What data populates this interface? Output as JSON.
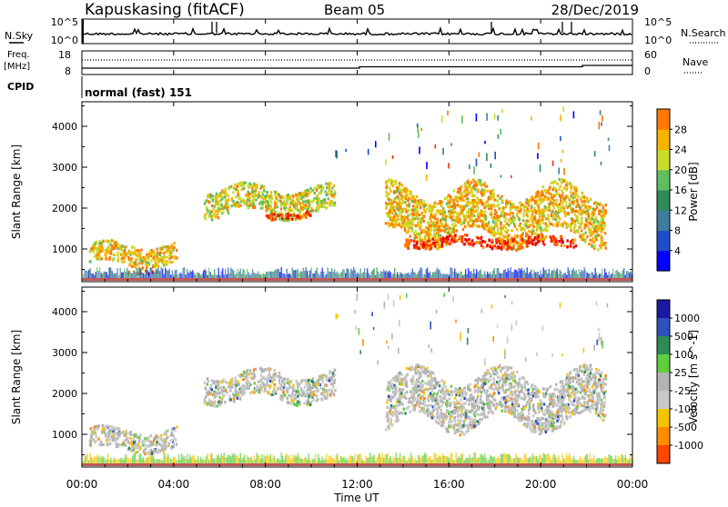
{
  "header": {
    "station": "Kapuskasing (fitACF)",
    "beam": "Beam 05",
    "date": "28/Dec/2019"
  },
  "top_panels": {
    "nsky_label": "N.Sky",
    "nsearch_label": "N.Search",
    "freq_label_1": "Freq.",
    "freq_label_2": "[MHz]",
    "nave_label": "Nave",
    "cpid_label": "CPID",
    "cpid_value": "normal (fast) 151",
    "noise_left_ticks": [
      "10^5",
      "10^0"
    ],
    "noise_right_ticks": [
      "10^5",
      "10^0"
    ],
    "freq_left_ticks": [
      "18",
      "8"
    ],
    "freq_right_ticks": [
      "60",
      "0"
    ]
  },
  "colors": {
    "power_scale": [
      "#0000ff",
      "#1e4fc8",
      "#3c7d9e",
      "#2e8b57",
      "#5fbf5f",
      "#c8dc28",
      "#f5b400",
      "#ff7800",
      "#ff2a00",
      "#e60000"
    ],
    "velocity_scale": [
      "#1a1aa0",
      "#2e4fbe",
      "#2e8b57",
      "#5fcf3f",
      "#b4b4b4",
      "#c8c8c8",
      "#f5c400",
      "#ff8c00",
      "#ff4500",
      "#e60000"
    ],
    "ground": "#808080"
  },
  "chart_data": [
    {
      "type": "heatmap",
      "panel": "power",
      "xlabel": "Time UT",
      "ylabel": "Slant Range [km]",
      "x_ticks": [
        "00:00",
        "04:00",
        "08:00",
        "12:00",
        "16:00",
        "20:00",
        "00:00"
      ],
      "y_ticks": [
        "1000",
        "2000",
        "3000",
        "4000"
      ],
      "ylim": [
        200,
        4600
      ],
      "x_range_hours": [
        0,
        24
      ],
      "colorbar": {
        "label": "Power [dB]",
        "tick_labels": [
          "4",
          "8",
          "12",
          "16",
          "20",
          "24",
          "28"
        ],
        "range": [
          0,
          30
        ]
      },
      "echo_regions": [
        {
          "t_start": 0.3,
          "t_end": 4.1,
          "r_low": 600,
          "r_high": 1200,
          "dominant_db": 20
        },
        {
          "t_start": 2.0,
          "t_end": 3.3,
          "r_low": 420,
          "r_high": 520,
          "dominant_db": 26
        },
        {
          "t_start": 5.3,
          "t_end": 11.0,
          "r_low": 1800,
          "r_high": 2600,
          "dominant_db": 18
        },
        {
          "t_start": 8.0,
          "t_end": 10.0,
          "r_low": 1750,
          "r_high": 1950,
          "dominant_db": 26
        },
        {
          "t_start": 13.2,
          "t_end": 22.8,
          "r_low": 1150,
          "r_high": 2600,
          "dominant_db": 20
        },
        {
          "t_start": 14.0,
          "t_end": 21.5,
          "r_low": 1050,
          "r_high": 1350,
          "dominant_db": 26
        }
      ]
    },
    {
      "type": "heatmap",
      "panel": "velocity",
      "xlabel": "Time UT",
      "ylabel": "Slant Range [km]",
      "x_ticks": [
        "00:00",
        "04:00",
        "08:00",
        "12:00",
        "16:00",
        "20:00",
        "00:00"
      ],
      "y_ticks": [
        "1000",
        "2000",
        "3000",
        "4000"
      ],
      "ylim": [
        200,
        4600
      ],
      "x_range_hours": [
        0,
        24
      ],
      "colorbar": {
        "label": "Velocity [m s^-1]",
        "tick_labels": [
          "1000",
          "500",
          "100",
          "25",
          "-25",
          "-100",
          "-500",
          "-1000"
        ],
        "range": [
          -1000,
          1000
        ]
      },
      "echo_regions": [
        {
          "t_start": 0.3,
          "t_end": 4.1,
          "r_low": 600,
          "r_high": 1200,
          "dominant_ms": 0
        },
        {
          "t_start": 5.3,
          "t_end": 11.0,
          "r_low": 1800,
          "r_high": 2600,
          "dominant_ms": 0
        },
        {
          "t_start": 13.2,
          "t_end": 22.8,
          "r_low": 1150,
          "r_high": 2600,
          "dominant_ms": 0
        }
      ]
    }
  ]
}
